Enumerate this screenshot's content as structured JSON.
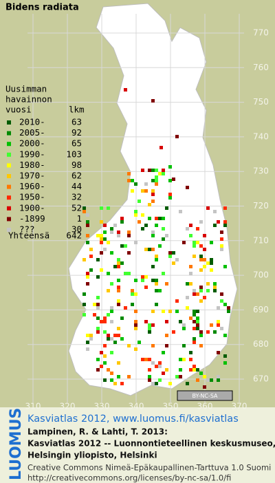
{
  "map": {
    "title": "Bidens radiata",
    "y_labels": [
      770,
      760,
      750,
      740,
      730,
      720,
      710,
      700,
      690,
      680,
      670
    ],
    "x_labels": [
      310,
      320,
      330,
      340,
      350,
      360,
      370
    ],
    "legend": {
      "heading": [
        "Uusimman",
        "havainnon"
      ],
      "column_headers": [
        "vuosi",
        "lkm"
      ],
      "entries": [
        {
          "label": "2010-",
          "count": 63,
          "color": "#005c00"
        },
        {
          "label": "2005-",
          "count": 92,
          "color": "#008a00"
        },
        {
          "label": "2000-",
          "count": 65,
          "color": "#00c000"
        },
        {
          "label": "1990-",
          "count": 103,
          "color": "#40ff30"
        },
        {
          "label": "1980-",
          "count": 98,
          "color": "#ffff00"
        },
        {
          "label": "1970-",
          "count": 62,
          "color": "#ffc800"
        },
        {
          "label": "1960-",
          "count": 44,
          "color": "#ff7800"
        },
        {
          "label": "1950-",
          "count": 32,
          "color": "#ff2a00"
        },
        {
          "label": "1900-",
          "count": 52,
          "color": "#d80000"
        },
        {
          "label": "-1899",
          "count": 1,
          "color": "#800000"
        },
        {
          "label": "???",
          "count": 30,
          "color": "#c4c4c4"
        }
      ],
      "total_label": "Yhteensä",
      "total": 642
    },
    "badge": "BY-NC-SA"
  },
  "footer": {
    "brand": "LUOMUS",
    "link": "Kasviatlas 2012, www.luomus.fi/kasviatlas",
    "citation": [
      "Lampinen, R. & Lahti, T. 2013:",
      "Kasviatlas 2012 -- Luonnontieteellinen keskusmuseo,",
      "Helsingin yliopisto, Helsinki"
    ],
    "license": [
      "Creative Commons Nimeä-Epäkaupallinen-Tarttuva 1.0 Suomi",
      "http://creativecommons.org/licenses/by-nc-sa/1.0/fi"
    ]
  }
}
